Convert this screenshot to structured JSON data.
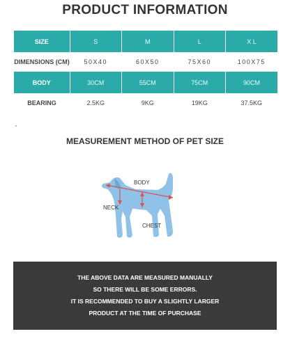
{
  "title": "PRODUCT INFORMATION",
  "table": {
    "rows": [
      {
        "label": "SIZE",
        "values": [
          "S",
          "M",
          "L",
          "X L"
        ]
      },
      {
        "label": "DIMENSIONS (CM)",
        "values": [
          "50X40",
          "60X50",
          "75X60",
          "100X75"
        ]
      },
      {
        "label": "BODY",
        "values": [
          "30CM",
          "55CM",
          "75CM",
          "90CM"
        ]
      },
      {
        "label": "BEARING",
        "values": [
          "2.5KG",
          "9KG",
          "19KG",
          "37.5KG"
        ]
      }
    ]
  },
  "measure_title": "MEASUREMENT METHOD OF PET SIZE",
  "diagram": {
    "body_label": "BODY",
    "neck_label": "NECK",
    "chest_label": "CHEST"
  },
  "colors": {
    "teal": "#2aaaa9",
    "dog": "#8fc2e6",
    "arrow": "#d9534f",
    "footer": "#3a3a3a"
  },
  "footer_lines": [
    "THE ABOVE DATA ARE MEASURED MANUALLY",
    "SO THERE WILL BE SOME ERRORS.",
    "IT IS RECOMMENDED TO BUY A SLIGHTLY LARGER",
    "PRODUCT AT THE TIME OF PURCHASE"
  ]
}
